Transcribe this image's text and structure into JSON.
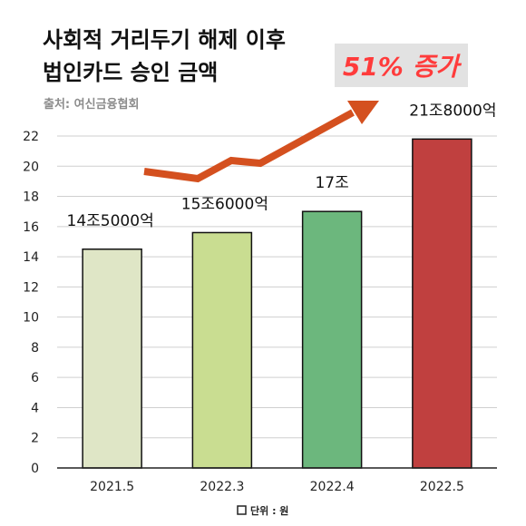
{
  "header": {
    "title_line1": "사회적 거리두기 해제 이후",
    "title_line2": "법인카드 승인 금액",
    "source": "출처: 여신금융협회"
  },
  "annotation": {
    "growth_label": "51% 증가",
    "arrow_color": "#d4501f",
    "text_color": "#ff3b3b"
  },
  "legend": {
    "unit_label": "단위 : 원"
  },
  "chart_data": {
    "type": "bar",
    "categories": [
      "2021.5",
      "2022.3",
      "2022.4",
      "2022.5"
    ],
    "values": [
      14.5,
      15.6,
      17,
      21.8
    ],
    "data_labels": [
      "14조5000억",
      "15조6000억",
      "17조",
      "21조8000억"
    ],
    "colors": [
      "#dfe6c6",
      "#c9dd91",
      "#6cb77d",
      "#c0403f"
    ],
    "yticks": [
      0,
      2,
      4,
      6,
      8,
      10,
      12,
      14,
      16,
      18,
      20,
      22
    ],
    "ylim": [
      0,
      22
    ],
    "grid": true
  }
}
